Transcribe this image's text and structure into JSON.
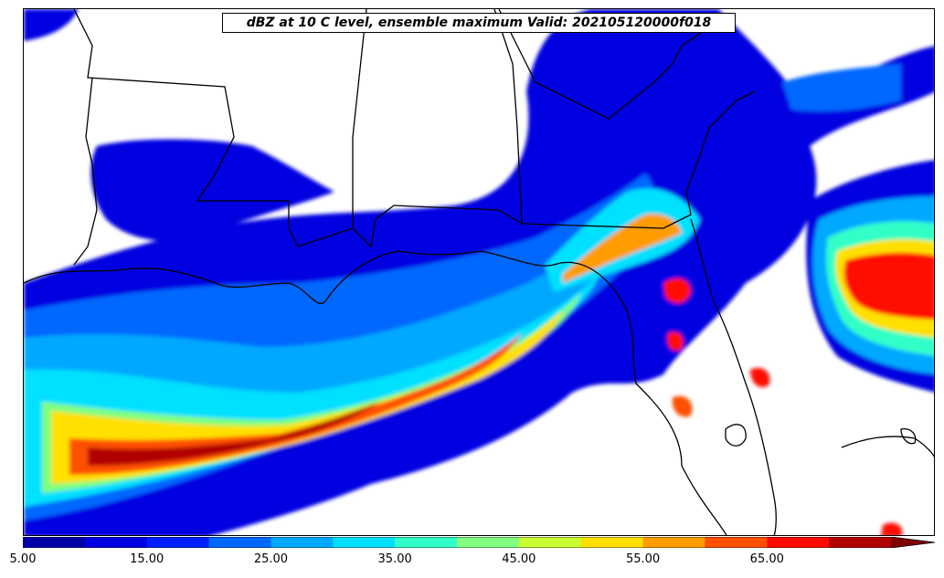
{
  "title": "dBZ at 10 C level, ensemble maximum Valid: 202105120000f018",
  "colorbar": {
    "bins": [
      5,
      10,
      15,
      20,
      25,
      30,
      35,
      40,
      45,
      50,
      55,
      60,
      65,
      70
    ],
    "colors": [
      "#0000a8",
      "#0000e0",
      "#0020ff",
      "#0068ff",
      "#00a8ff",
      "#00e0ff",
      "#30ffc8",
      "#80ff80",
      "#c8ff30",
      "#ffe000",
      "#ff9c00",
      "#ff5000",
      "#ff0a00",
      "#b00000"
    ],
    "extend_color": "#800000",
    "tick_labels": [
      "5.00",
      "15.00",
      "25.00",
      "35.00",
      "45.00",
      "55.00",
      "65.00"
    ]
  },
  "colors": {
    "background": "#ffffff",
    "border": "#000000"
  }
}
